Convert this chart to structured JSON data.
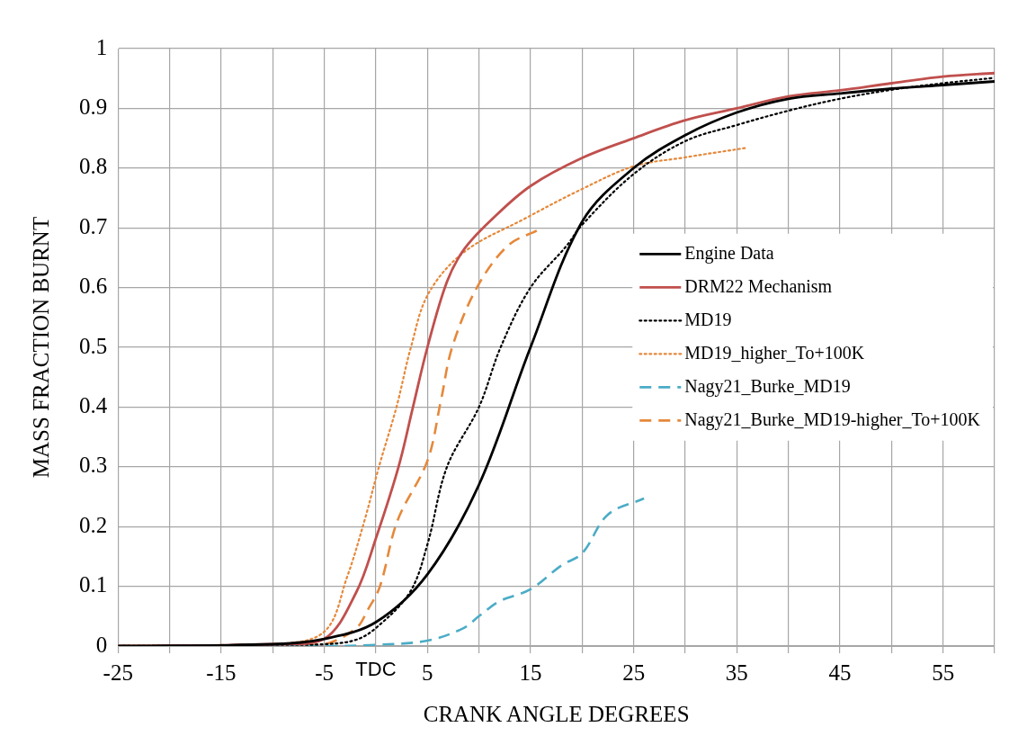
{
  "chart_data": {
    "type": "line",
    "xlabel": "CRANK ANGLE DEGREES",
    "ylabel": "MASS FRACTION BURNT",
    "xlim": [
      -25,
      60
    ],
    "xticks": [
      -25,
      {
        "value": -20,
        "label": null
      },
      -15,
      {
        "value": -10,
        "label": null
      },
      -5,
      {
        "value": 0,
        "label": null
      },
      5,
      {
        "value": 10,
        "label": null
      },
      15,
      {
        "value": 20,
        "label": null
      },
      25,
      {
        "value": 30,
        "label": null
      },
      35,
      {
        "value": 40,
        "label": null
      },
      45,
      {
        "value": 50,
        "label": null
      },
      55,
      {
        "value": 60,
        "label": null
      }
    ],
    "ylim": [
      0,
      1
    ],
    "yticks": [
      0,
      0.1,
      0.2,
      0.3,
      0.4,
      0.5,
      0.6,
      0.7,
      0.8,
      0.9,
      1
    ],
    "grid": true,
    "legend": "right",
    "annotations": [
      "TDC"
    ],
    "series": [
      {
        "name": "Engine Data",
        "color": "#000000",
        "line_style": "solid",
        "x": [
          -25,
          -10,
          -5,
          0,
          5,
          10,
          15,
          20,
          25,
          30,
          35,
          40,
          45,
          50,
          55,
          60
        ],
        "values": [
          0,
          0.003,
          0.012,
          0.04,
          0.12,
          0.27,
          0.5,
          0.71,
          0.8,
          0.855,
          0.893,
          0.916,
          0.925,
          0.933,
          0.939,
          0.945
        ]
      },
      {
        "name": "DRM22 Mechanism",
        "color": "#c0504d",
        "line_style": "solid",
        "x": [
          -25,
          -10,
          -5,
          -1.9,
          0,
          2.2,
          3.6,
          5,
          6.9,
          8.6,
          11.3,
          15,
          20,
          25,
          30,
          35,
          40,
          45,
          50,
          55,
          60
        ],
        "values": [
          0,
          0.003,
          0.012,
          0.09,
          0.18,
          0.3,
          0.4,
          0.5,
          0.61,
          0.665,
          0.715,
          0.77,
          0.817,
          0.85,
          0.88,
          0.9,
          0.92,
          0.93,
          0.942,
          0.953,
          0.959
        ]
      },
      {
        "name": "MD19",
        "color": "#000000",
        "line_style": "dotted",
        "x": [
          -25,
          -10,
          -5,
          -2,
          0,
          3.3,
          5,
          6.9,
          10,
          12.1,
          15,
          18.5,
          20,
          25,
          30,
          35,
          40,
          45,
          50,
          55,
          60
        ],
        "values": [
          0,
          0.002,
          0.003,
          0.01,
          0.03,
          0.09,
          0.17,
          0.3,
          0.4,
          0.5,
          0.6,
          0.67,
          0.705,
          0.79,
          0.845,
          0.872,
          0.896,
          0.916,
          0.931,
          0.942,
          0.951
        ]
      },
      {
        "name": "MD19_higher_To+100K",
        "color": "#e6883a",
        "line_style": "dotted",
        "x": [
          -25,
          -10,
          -5,
          -2.8,
          -1.1,
          0.3,
          2,
          3.4,
          5.1,
          8.6,
          14.4,
          20,
          25,
          30,
          36
        ],
        "values": [
          0,
          0.003,
          0.024,
          0.115,
          0.21,
          0.3,
          0.4,
          0.5,
          0.59,
          0.66,
          0.715,
          0.765,
          0.803,
          0.818,
          0.834
        ]
      },
      {
        "name": "Nagy21_Burke_MD19",
        "color": "#4bacc6",
        "line_style": "dashed",
        "x": [
          -25,
          -5,
          0,
          5,
          8.5,
          10,
          12,
          15,
          18,
          20,
          22.5,
          26
        ],
        "values": [
          0,
          0,
          0.002,
          0.009,
          0.03,
          0.05,
          0.075,
          0.095,
          0.135,
          0.155,
          0.22,
          0.247
        ]
      },
      {
        "name": "Nagy21_Burke_MD19-higher_To+100K",
        "color": "#e6883a",
        "line_style": "dashed",
        "x": [
          -25,
          -10,
          -5,
          -1.9,
          -0.8,
          0.4,
          2.1,
          5,
          6.3,
          7.4,
          9.8,
          12.8,
          15.8
        ],
        "values": [
          0,
          0.002,
          0.003,
          0.03,
          0.06,
          0.1,
          0.21,
          0.31,
          0.41,
          0.5,
          0.6,
          0.67,
          0.697
        ]
      }
    ]
  }
}
